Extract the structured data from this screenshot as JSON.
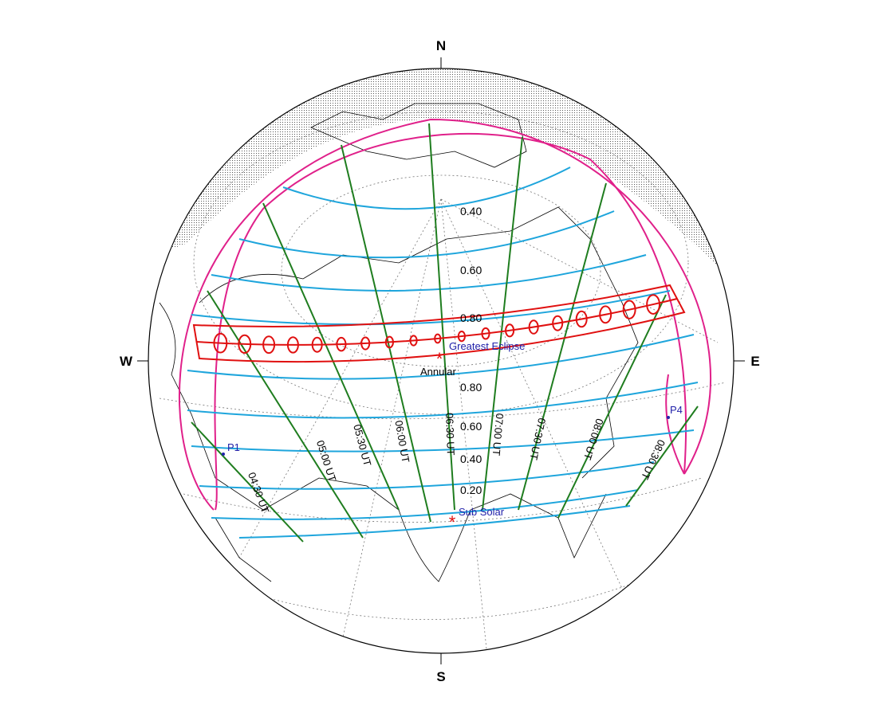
{
  "compass": {
    "north": "N",
    "south": "S",
    "west": "W",
    "east": "E"
  },
  "magnitude_labels_north": [
    "0.40",
    "0.60",
    "0.80"
  ],
  "magnitude_labels_south": [
    "0.80",
    "0.60",
    "0.40",
    "0.20"
  ],
  "time_labels": [
    "04:30 UT",
    "05:00 UT",
    "05:30 UT",
    "06:00 UT",
    "06:30 UT",
    "07:00 UT",
    "07:30 UT",
    "08:00 UT",
    "08:30 UT"
  ],
  "points": {
    "greatest_eclipse": "Greatest Eclipse",
    "eclipse_type": "Annular",
    "sub_solar": "Sub Solar",
    "p1": "P1",
    "p4": "P4"
  }
}
